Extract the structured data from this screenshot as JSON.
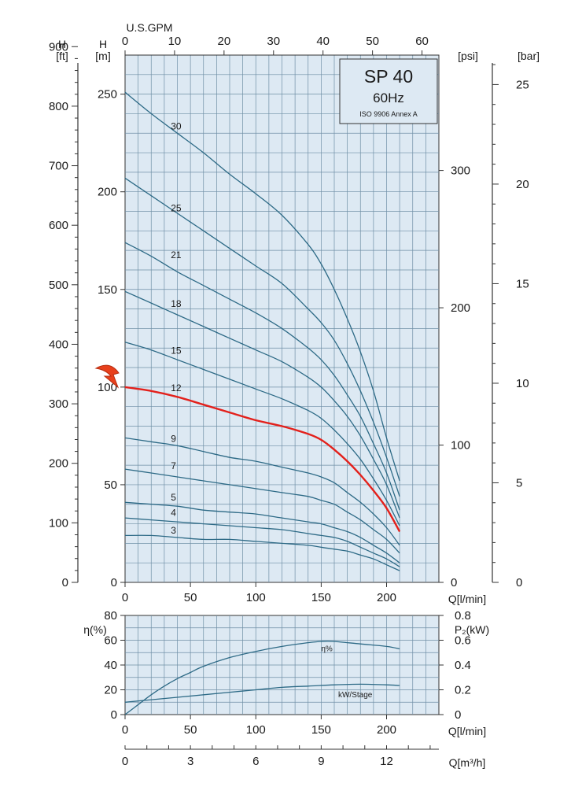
{
  "header": {
    "model": "SP 40",
    "frequency": "60Hz",
    "standard": "ISO 9906 Annex A"
  },
  "axes_labels": {
    "gpm": "U.S.GPM",
    "head_ft_h": "H",
    "head_ft_u": "[ft]",
    "head_m_h": "H",
    "head_m_u": "[m]",
    "psi": "[psi]",
    "bar": "[bar]",
    "q_lmin": "Q[l/min]",
    "eta": "η(%)",
    "p2": "P₂(kW)",
    "q_m3h": "Q[m³/h]"
  },
  "colors": {
    "grid_bg": "#dde9f3",
    "grid_line": "#6f8fa6",
    "curve": "#2d6a86",
    "highlight": "#e3201b",
    "arrow": "#e8401c"
  },
  "chart_data": [
    {
      "type": "line",
      "title": "",
      "xlabel": "Q[l/min]",
      "ylabel": "H [m]",
      "xlim": [
        0,
        240
      ],
      "ylim": [
        0,
        270
      ],
      "x_ticks": [
        "0",
        "50",
        "100",
        "150",
        "200"
      ],
      "y_ticks": [
        "0",
        "50",
        "100",
        "150",
        "200",
        "250"
      ],
      "top_axis": {
        "label": "U.S.GPM",
        "ticks": [
          "0",
          "10",
          "20",
          "30",
          "40",
          "50",
          "60"
        ]
      },
      "left_axis_ft": {
        "label": "H [ft]",
        "ticks": [
          "0",
          "100",
          "200",
          "300",
          "400",
          "500",
          "600",
          "700",
          "800",
          "900"
        ]
      },
      "right_axis_psi": {
        "label": "[psi]",
        "ticks": [
          "0",
          "100",
          "200",
          "300"
        ]
      },
      "right_axis_bar": {
        "label": "[bar]",
        "ticks": [
          "0",
          "5",
          "10",
          "15",
          "20",
          "25"
        ]
      },
      "highlighted_series": "12",
      "series": [
        {
          "name": "30",
          "label_at": [
            35,
            232
          ],
          "x": [
            0,
            20,
            40,
            60,
            80,
            100,
            120,
            140,
            150,
            160,
            170,
            180,
            190,
            200,
            210
          ],
          "y": [
            251,
            240,
            230,
            220,
            209,
            199,
            188,
            173,
            163,
            150,
            135,
            118,
            98,
            74,
            52
          ]
        },
        {
          "name": "25",
          "label_at": [
            35,
            190
          ],
          "x": [
            0,
            20,
            40,
            60,
            80,
            100,
            120,
            140,
            150,
            160,
            170,
            180,
            190,
            200,
            210
          ],
          "y": [
            207,
            198,
            189,
            180,
            171,
            162,
            153,
            140,
            133,
            124,
            112,
            98,
            82,
            64,
            44
          ]
        },
        {
          "name": "21",
          "label_at": [
            35,
            166
          ],
          "x": [
            0,
            20,
            40,
            60,
            80,
            100,
            120,
            140,
            150,
            160,
            170,
            180,
            190,
            200,
            210
          ],
          "y": [
            174,
            167,
            159,
            152,
            145,
            138,
            130,
            120,
            114,
            106,
            96,
            85,
            71,
            56,
            37
          ]
        },
        {
          "name": "18",
          "label_at": [
            35,
            141
          ],
          "x": [
            0,
            20,
            40,
            60,
            80,
            100,
            120,
            140,
            150,
            160,
            170,
            180,
            190,
            200,
            210
          ],
          "y": [
            149,
            143,
            137,
            131,
            125,
            119,
            113,
            105,
            100,
            93,
            85,
            75,
            63,
            50,
            33
          ]
        },
        {
          "name": "15",
          "label_at": [
            35,
            117
          ],
          "x": [
            0,
            20,
            40,
            60,
            80,
            100,
            120,
            140,
            150,
            160,
            170,
            180,
            190,
            200,
            210
          ],
          "y": [
            123,
            119,
            114,
            109,
            104,
            99,
            94,
            88,
            84,
            78,
            71,
            63,
            53,
            42,
            29
          ]
        },
        {
          "name": "12",
          "label_at": [
            35,
            98
          ],
          "x": [
            0,
            20,
            40,
            60,
            80,
            100,
            120,
            140,
            150,
            160,
            170,
            180,
            190,
            200,
            210
          ],
          "y": [
            100,
            98,
            95,
            91,
            87,
            83,
            80,
            76,
            73,
            68,
            62,
            55,
            47,
            38,
            26
          ]
        },
        {
          "name": "9",
          "label_at": [
            35,
            72
          ],
          "x": [
            0,
            20,
            40,
            60,
            80,
            100,
            120,
            140,
            150,
            160,
            170,
            180,
            190,
            200,
            210
          ],
          "y": [
            74,
            72,
            70,
            67,
            64,
            62,
            59,
            56,
            54,
            51,
            46,
            41,
            35,
            28,
            19
          ]
        },
        {
          "name": "7",
          "label_at": [
            35,
            58
          ],
          "x": [
            0,
            20,
            40,
            60,
            80,
            100,
            120,
            140,
            150,
            160,
            170,
            180,
            190,
            200,
            210
          ],
          "y": [
            58,
            56,
            54,
            52,
            50,
            48,
            46,
            44,
            42,
            40,
            36,
            32,
            27,
            22,
            15
          ]
        },
        {
          "name": "5",
          "label_at": [
            35,
            42
          ],
          "x": [
            0,
            20,
            40,
            60,
            80,
            100,
            120,
            140,
            150,
            160,
            170,
            180,
            190,
            200,
            210
          ],
          "y": [
            41,
            40,
            39,
            37,
            36,
            35,
            33,
            31,
            30,
            28,
            26,
            23,
            19,
            15,
            10
          ]
        },
        {
          "name": "4",
          "label_at": [
            35,
            34
          ],
          "x": [
            0,
            20,
            40,
            60,
            80,
            100,
            120,
            140,
            150,
            160,
            170,
            180,
            190,
            200,
            210
          ],
          "y": [
            33,
            32,
            31,
            30,
            29,
            28,
            27,
            25,
            24,
            23,
            21,
            18,
            15,
            12,
            8
          ]
        },
        {
          "name": "3",
          "label_at": [
            35,
            25
          ],
          "x": [
            0,
            20,
            40,
            60,
            80,
            100,
            120,
            140,
            150,
            160,
            170,
            180,
            190,
            200,
            210
          ],
          "y": [
            24,
            24,
            23,
            22,
            22,
            21,
            20,
            19,
            18,
            17,
            16,
            14,
            12,
            9,
            6
          ]
        }
      ]
    },
    {
      "type": "line",
      "title": "",
      "xlabel": "Q[l/min]",
      "ylabel": "η(%)",
      "xlim": [
        0,
        240
      ],
      "ylim": [
        0,
        80
      ],
      "x_ticks": [
        "0",
        "50",
        "100",
        "150",
        "200"
      ],
      "y_ticks": [
        "0",
        "20",
        "40",
        "60",
        "80"
      ],
      "right_axis_p2": {
        "label": "P₂(kW)",
        "ticks": [
          "0",
          "0.2",
          "0.4",
          "0.6",
          "0.8"
        ]
      },
      "bottom_axis_m3h": {
        "label": "Q[m³/h]",
        "ticks": [
          "0",
          "3",
          "6",
          "9",
          "12"
        ]
      },
      "series": [
        {
          "name": "η%",
          "label_at": [
            150,
            51
          ],
          "x": [
            0,
            10,
            20,
            30,
            40,
            50,
            60,
            80,
            100,
            120,
            140,
            150,
            160,
            180,
            200,
            210
          ],
          "y": [
            0,
            8,
            16,
            23,
            29,
            34,
            39,
            46,
            51,
            55,
            58,
            59,
            59,
            57,
            55,
            53
          ]
        },
        {
          "name": "kW/Stage",
          "label_at": [
            163,
            14
          ],
          "x": [
            0,
            20,
            40,
            60,
            80,
            100,
            120,
            140,
            160,
            180,
            200,
            210
          ],
          "y": [
            10,
            12,
            14,
            16,
            18,
            20,
            22,
            23,
            24,
            24.5,
            24,
            23.5
          ]
        }
      ]
    }
  ]
}
